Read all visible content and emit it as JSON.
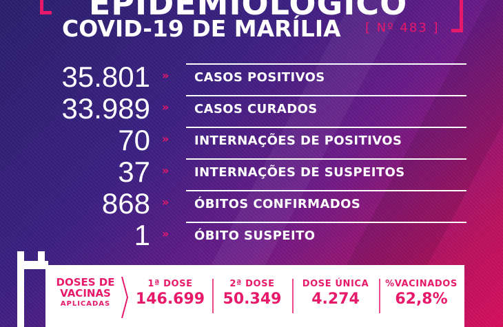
{
  "header": {
    "headline": "EPIDEMIOLÓGICO",
    "subtitle": "COVID-19 DE MARÍLIA",
    "bulletin_number": "[ Nº 483 ]"
  },
  "stats": [
    {
      "value": "35.801",
      "label": "CASOS POSITIVOS"
    },
    {
      "value": "33.989",
      "label": "CASOS CURADOS"
    },
    {
      "value": "70",
      "label": "INTERNAÇÕES DE POSITIVOS"
    },
    {
      "value": "37",
      "label": "INTERNAÇÕES DE SUSPEITOS"
    },
    {
      "value": "868",
      "label": "ÓBITOS CONFIRMADOS"
    },
    {
      "value": "1",
      "label": "ÓBITO SUSPEITO"
    }
  ],
  "arrow_glyph": "»",
  "vaccines": {
    "title_line1": "DOSES DE",
    "title_line2": "VACINAS",
    "title_line3": "APLICADAS",
    "columns": [
      {
        "label": "1ª DOSE",
        "value": "146.699"
      },
      {
        "label": "2ª DOSE",
        "value": "50.349"
      },
      {
        "label": "DOSE ÚNICA",
        "value": "4.274"
      },
      {
        "label": "%VACINADOS",
        "value": "62,8%"
      }
    ]
  },
  "colors": {
    "accent": "#e8196a",
    "bg_start": "#2a1f6b",
    "bg_end": "#d40f5a"
  }
}
